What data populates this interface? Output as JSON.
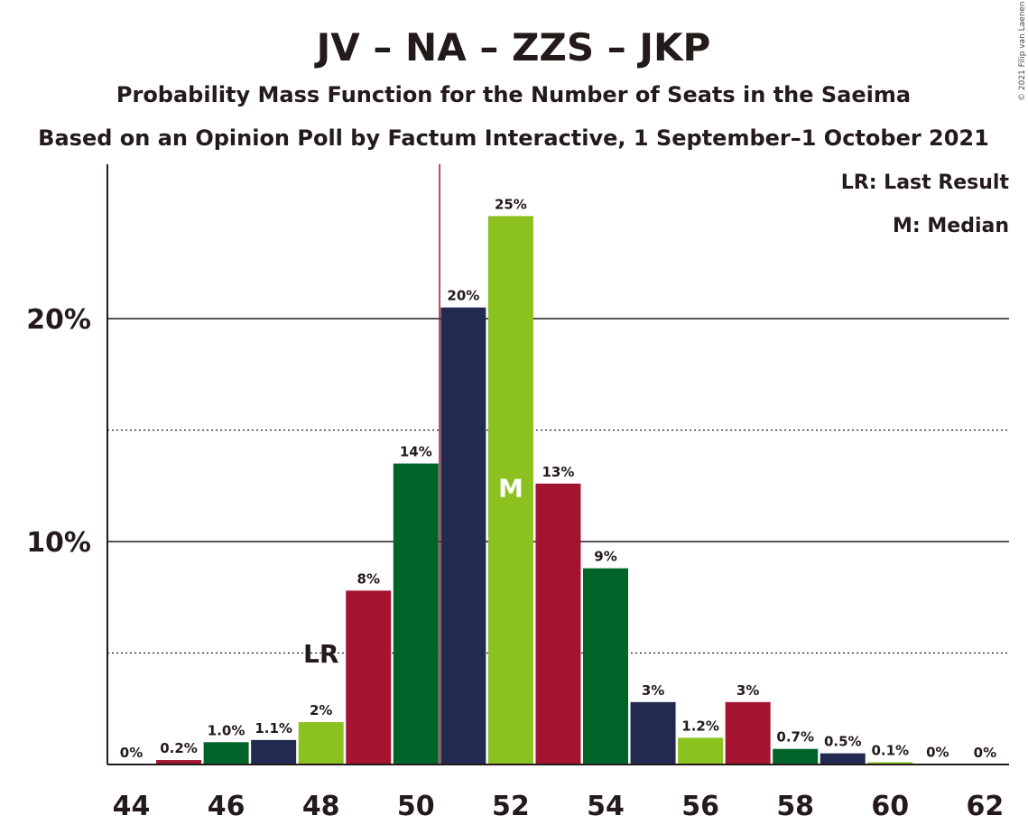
{
  "chart_data": {
    "type": "bar",
    "title": "JV – NA – ZZS – JKP",
    "subtitle": "Probability Mass Function for the Number of Seats in the Saeima",
    "subtitle2": "Based on an Opinion Poll by Factum Interactive, 1 September–1 October 2021",
    "copyright": "© 2021 Filip van Laenen",
    "categories": [
      44,
      45,
      46,
      47,
      48,
      49,
      50,
      51,
      52,
      53,
      54,
      55,
      56,
      57,
      58,
      59,
      60,
      61,
      62
    ],
    "x_tick_labels": [
      "44",
      "46",
      "48",
      "50",
      "52",
      "54",
      "56",
      "58",
      "60",
      "62"
    ],
    "values": [
      0.0,
      0.2,
      1.0,
      1.1,
      1.9,
      7.8,
      13.5,
      20.5,
      24.6,
      12.6,
      8.8,
      2.8,
      1.2,
      2.8,
      0.7,
      0.5,
      0.1,
      0.02,
      0.01
    ],
    "value_labels": [
      "0%",
      "0.2%",
      "1.0%",
      "1.1%",
      "2%",
      "8%",
      "14%",
      "20%",
      "25%",
      "13%",
      "9%",
      "3%",
      "1.2%",
      "3%",
      "0.7%",
      "0.5%",
      "0.1%",
      "0%",
      "0%"
    ],
    "bar_colors": [
      "#6c2236",
      "#a31431",
      "#006428",
      "#222a50",
      "#8bc220",
      "#a31431",
      "#006428",
      "#222a50",
      "#8bc220",
      "#a31431",
      "#006428",
      "#222a50",
      "#8bc220",
      "#a31431",
      "#006428",
      "#222a50",
      "#8bc220",
      "#a31431",
      "#006428"
    ],
    "y_tick_labels": [
      "10%",
      "20%"
    ],
    "y_major_ticks": [
      10,
      20
    ],
    "y_minor_gridlines": [
      5,
      15
    ],
    "ylim": [
      0,
      27
    ],
    "last_result_seat": 48,
    "last_result_marker": "LR",
    "median_seat": 52,
    "median_marker": "M",
    "majority_line_seat": 50.5,
    "majority_line_color": "#a31431",
    "legend": [
      "LR: Last Result",
      "M: Median"
    ],
    "legend_position": "top-right",
    "text_color": "#231a1a"
  }
}
